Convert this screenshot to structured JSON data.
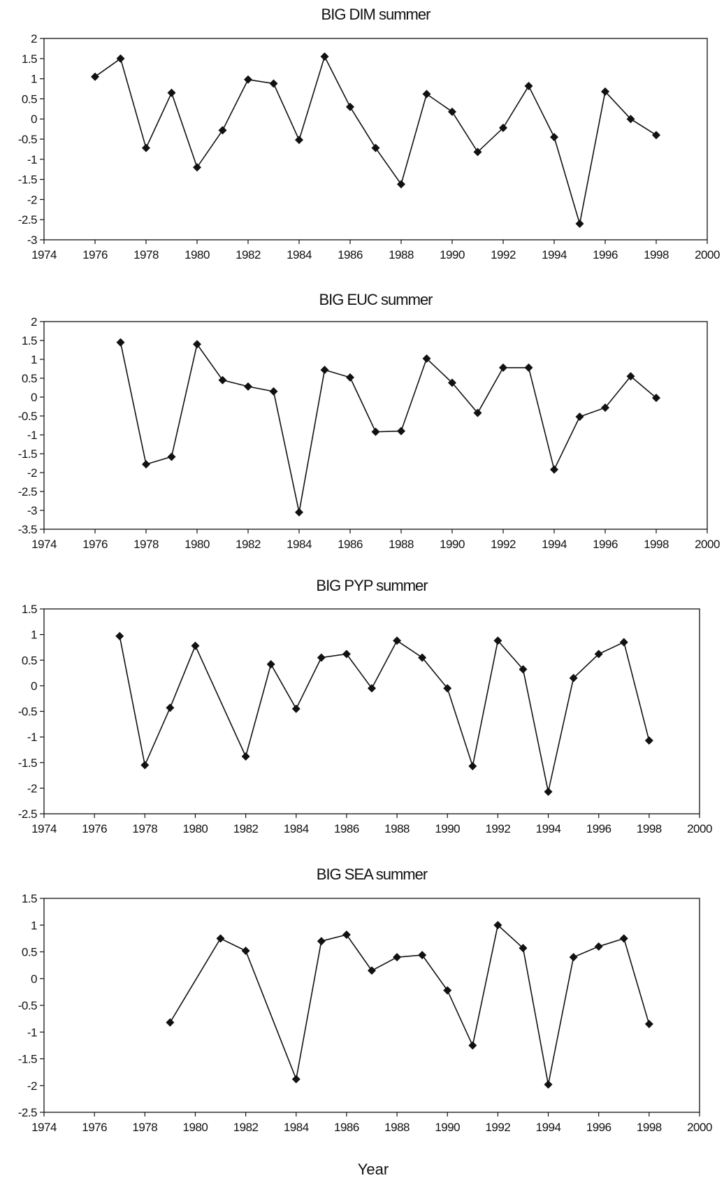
{
  "xlabel": "Year",
  "chart_data": [
    {
      "type": "line",
      "title": "BIG DIM summer",
      "xlim": [
        1974,
        2000
      ],
      "ylim": [
        -3,
        2
      ],
      "xticks": [
        "1974",
        "1976",
        "1978",
        "1980",
        "1982",
        "1984",
        "1986",
        "1988",
        "1990",
        "1992",
        "1994",
        "1996",
        "1998",
        "2000"
      ],
      "yticks": [
        "2",
        "1.5",
        "1",
        "0.5",
        "0",
        "-0.5",
        "-1",
        "-1.5",
        "-2",
        "-2.5",
        "-3"
      ],
      "grid": false,
      "series": [
        {
          "x": [
            1976,
            1977,
            1978,
            1979,
            1980,
            1981,
            1982,
            1983,
            1984,
            1985,
            1986,
            1987,
            1988,
            1989,
            1990,
            1991,
            1992,
            1993,
            1994,
            1995,
            1996,
            1997,
            1998
          ],
          "values": [
            1.05,
            1.5,
            -0.72,
            0.65,
            -1.2,
            -0.28,
            0.98,
            0.88,
            -0.52,
            1.55,
            0.3,
            -0.72,
            -1.62,
            0.62,
            0.18,
            -0.82,
            -0.22,
            0.82,
            -0.45,
            -2.6,
            0.68,
            0.0,
            -0.4
          ]
        }
      ]
    },
    {
      "type": "line",
      "title": "BIG EUC summer",
      "xlim": [
        1974,
        2000
      ],
      "ylim": [
        -3.5,
        2
      ],
      "xticks": [
        "1974",
        "1976",
        "1978",
        "1980",
        "1982",
        "1984",
        "1986",
        "1988",
        "1990",
        "1992",
        "1994",
        "1996",
        "1998",
        "2000"
      ],
      "yticks": [
        "2",
        "1.5",
        "1",
        "0.5",
        "0",
        "-0.5",
        "-1",
        "-1.5",
        "-2",
        "-2.5",
        "-3",
        "-3.5"
      ],
      "grid": false,
      "series": [
        {
          "x": [
            1977,
            1978,
            1979,
            1980,
            1981,
            1982,
            1983,
            1984,
            1985,
            1986,
            1987,
            1988,
            1989,
            1990,
            1991,
            1992,
            1993,
            1994,
            1995,
            1996,
            1997,
            1998
          ],
          "values": [
            1.45,
            -1.78,
            -1.58,
            1.4,
            0.45,
            0.28,
            0.15,
            -3.05,
            0.72,
            0.52,
            -0.92,
            -0.9,
            1.02,
            0.38,
            -0.42,
            0.78,
            0.78,
            -1.92,
            -0.52,
            -0.28,
            0.55,
            -0.02
          ]
        }
      ]
    },
    {
      "type": "line",
      "title": "BIG PYP summer",
      "xlim": [
        1974,
        2000
      ],
      "ylim": [
        -2.5,
        1.5
      ],
      "xticks": [
        "1974",
        "1976",
        "1978",
        "1980",
        "1982",
        "1984",
        "1986",
        "1988",
        "1990",
        "1992",
        "1994",
        "1996",
        "1998",
        "2000"
      ],
      "yticks": [
        "1.5",
        "1",
        "0.5",
        "0",
        "-0.5",
        "-1",
        "-1.5",
        "-2",
        "-2.5"
      ],
      "grid": false,
      "series": [
        {
          "x": [
            1977,
            1978,
            1979,
            1980,
            1982,
            1983,
            1984,
            1985,
            1986,
            1987,
            1988,
            1989,
            1990,
            1991,
            1992,
            1993,
            1994,
            1995,
            1996,
            1997,
            1998
          ],
          "values": [
            0.97,
            -1.55,
            -0.43,
            0.78,
            -1.38,
            0.42,
            -0.45,
            0.55,
            0.62,
            -0.05,
            0.88,
            0.55,
            -0.05,
            -1.57,
            0.88,
            0.32,
            -2.07,
            0.15,
            0.62,
            0.85,
            -1.07
          ]
        }
      ]
    },
    {
      "type": "line",
      "title": "BIG SEA summer",
      "xlim": [
        1974,
        2000
      ],
      "ylim": [
        -2.5,
        1.5
      ],
      "xticks": [
        "1974",
        "1976",
        "1978",
        "1980",
        "1982",
        "1984",
        "1986",
        "1988",
        "1990",
        "1992",
        "1994",
        "1996",
        "1998",
        "2000"
      ],
      "yticks": [
        "1.5",
        "1",
        "0.5",
        "0",
        "-0.5",
        "-1",
        "-1.5",
        "-2",
        "-2.5"
      ],
      "grid": false,
      "series": [
        {
          "x": [
            1979,
            1981,
            1982,
            1984,
            1985,
            1986,
            1987,
            1988,
            1989,
            1990,
            1991,
            1992,
            1993,
            1994,
            1995,
            1996,
            1997,
            1998
          ],
          "values": [
            -0.82,
            0.75,
            0.52,
            -1.88,
            0.7,
            0.82,
            0.15,
            0.4,
            0.44,
            -0.22,
            -1.25,
            1.0,
            0.57,
            -1.98,
            0.4,
            0.6,
            0.75,
            -0.85
          ]
        }
      ]
    }
  ]
}
